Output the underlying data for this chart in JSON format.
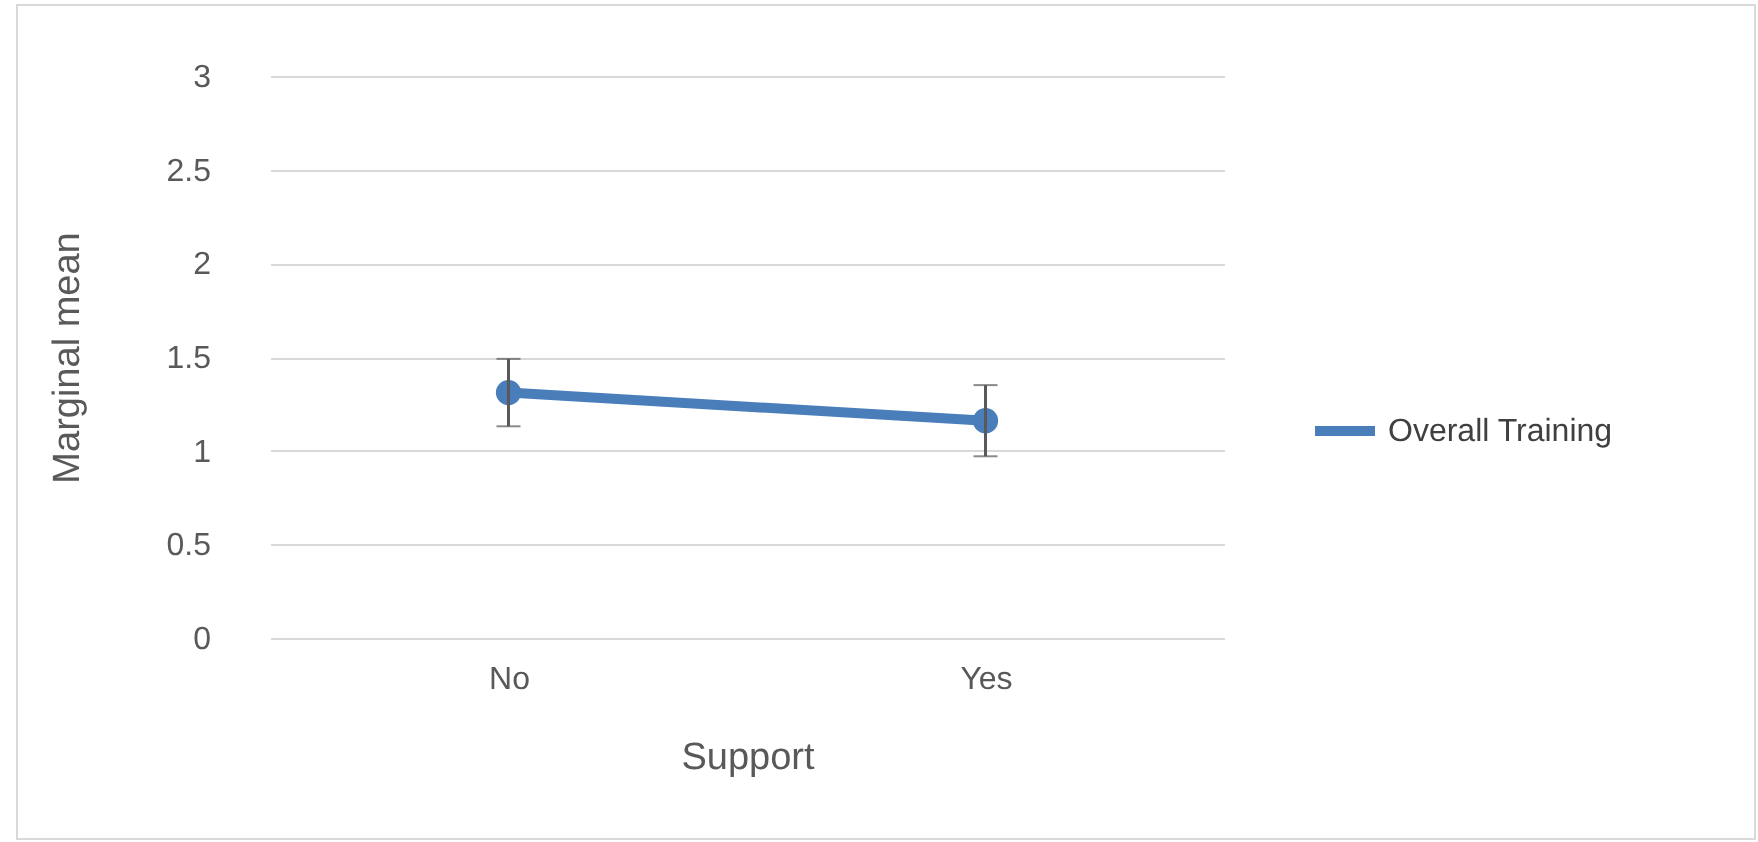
{
  "chart_data": {
    "type": "line",
    "xlabel": "Support",
    "ylabel": "Marginal mean",
    "categories": [
      "No",
      "Yes"
    ],
    "series": [
      {
        "name": "Overall Training",
        "color": "#4a7ebb",
        "values": [
          1.31,
          1.16
        ],
        "errors": [
          0.18,
          0.19
        ]
      }
    ],
    "ylim": [
      0,
      3
    ],
    "yticks": [
      0,
      0.5,
      1,
      1.5,
      2,
      2.5,
      3
    ],
    "grid": "y",
    "legend": "right",
    "marker": "circle",
    "line_style": "solid"
  }
}
